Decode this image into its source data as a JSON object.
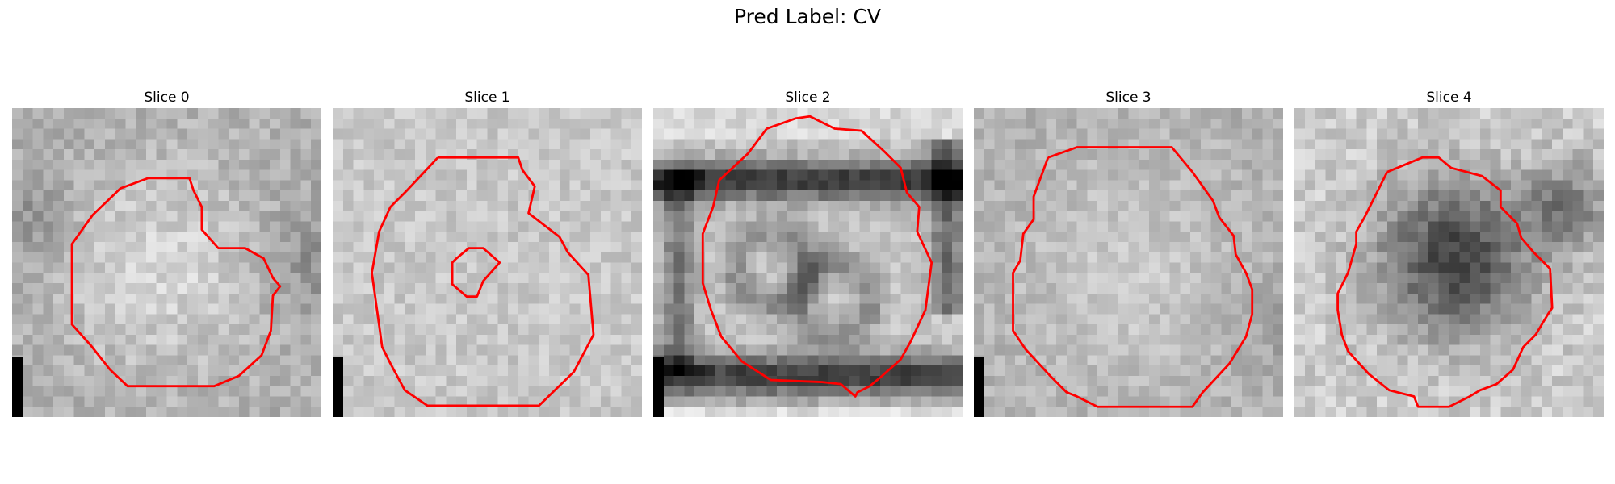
{
  "figure": {
    "title": "Pred Label: CV"
  },
  "slices": [
    {
      "title": "Slice 0",
      "variant": "bright-blob",
      "scale_bar": true
    },
    {
      "title": "Slice 1",
      "variant": "flat-bright",
      "scale_bar": true
    },
    {
      "title": "Slice 2",
      "variant": "dark-ring",
      "scale_bar": true
    },
    {
      "title": "Slice 3",
      "variant": "mid-gray",
      "scale_bar": true
    },
    {
      "title": "Slice 4",
      "variant": "dark-blob",
      "scale_bar": false
    }
  ],
  "colors": {
    "contour": "#ff0000",
    "scale_bar": "#000000",
    "background": "#ffffff"
  }
}
